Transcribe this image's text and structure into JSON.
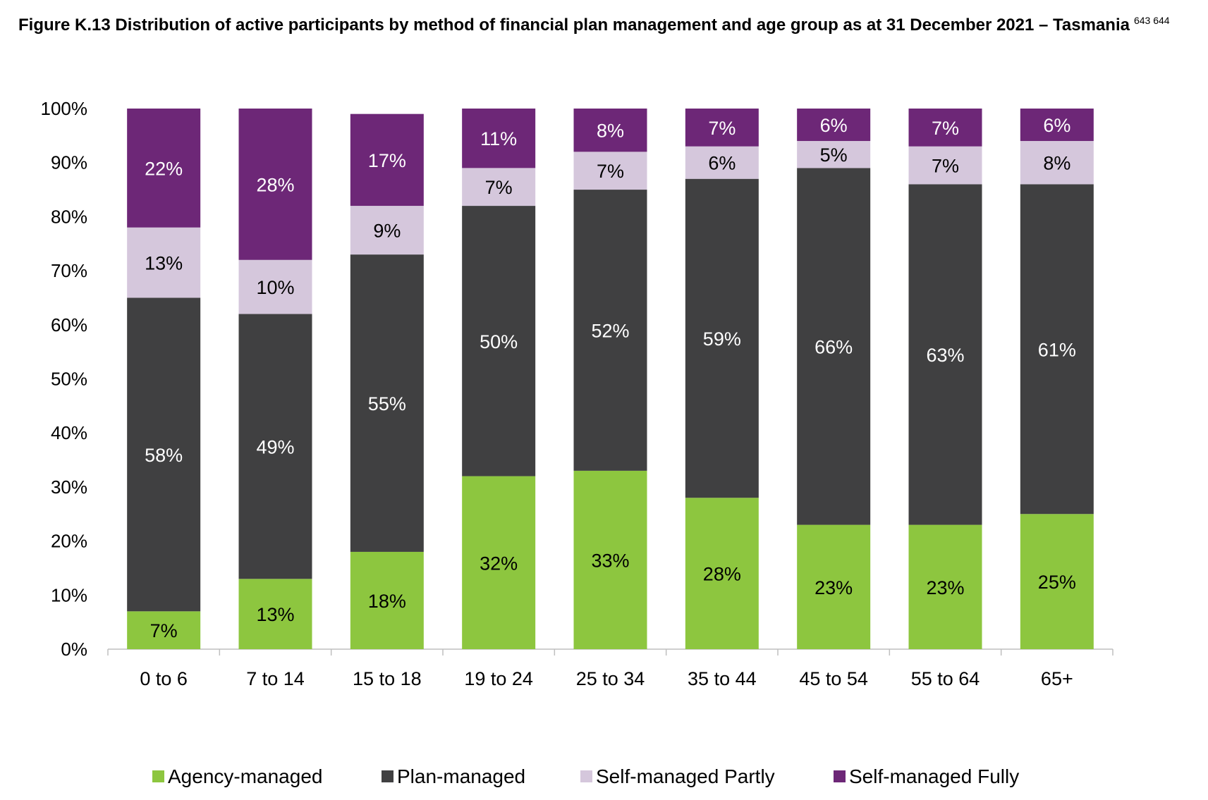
{
  "title": {
    "text": "Figure K.13 Distribution of active participants by method of financial plan management and age group as at 31 December 2021 – Tasmania",
    "footnote": "643 644"
  },
  "chart_data": {
    "type": "bar",
    "stacked": true,
    "categories": [
      "0 to 6",
      "7 to 14",
      "15 to 18",
      "19 to 24",
      "25 to 34",
      "35 to 44",
      "45 to 54",
      "55 to 64",
      "65+"
    ],
    "series": [
      {
        "name": "Agency-managed",
        "color": "#8dc63f",
        "label_color": "#000000",
        "values": [
          7,
          13,
          18,
          32,
          33,
          28,
          23,
          23,
          25
        ],
        "labels": [
          "7%",
          "13%",
          "18%",
          "32%",
          "33%",
          "28%",
          "23%",
          "23%",
          "25%"
        ]
      },
      {
        "name": "Plan-managed",
        "color": "#404041",
        "label_color": "#ffffff",
        "values": [
          58,
          49,
          55,
          50,
          52,
          59,
          66,
          63,
          61
        ],
        "labels": [
          "58%",
          "49%",
          "55%",
          "50%",
          "52%",
          "59%",
          "66%",
          "63%",
          "61%"
        ]
      },
      {
        "name": "Self-managed Partly",
        "color": "#d5c7dc",
        "label_color": "#000000",
        "values": [
          13,
          10,
          9,
          7,
          7,
          6,
          5,
          7,
          8
        ],
        "labels": [
          "13%",
          "10%",
          "9%",
          "7%",
          "7%",
          "6%",
          "5%",
          "7%",
          "8%"
        ]
      },
      {
        "name": "Self-managed Fully",
        "color": "#6d2777",
        "label_color": "#ffffff",
        "values": [
          22,
          28,
          17,
          11,
          8,
          7,
          6,
          7,
          6
        ],
        "labels": [
          "22%",
          "28%",
          "17%",
          "11%",
          "8%",
          "7%",
          "6%",
          "7%",
          "6%"
        ]
      }
    ],
    "ylim": [
      0,
      100
    ],
    "yticks": [
      "0%",
      "10%",
      "20%",
      "30%",
      "40%",
      "50%",
      "60%",
      "70%",
      "80%",
      "90%",
      "100%"
    ],
    "xlabel": "",
    "ylabel": "",
    "grid": false,
    "legend": "bottom"
  }
}
